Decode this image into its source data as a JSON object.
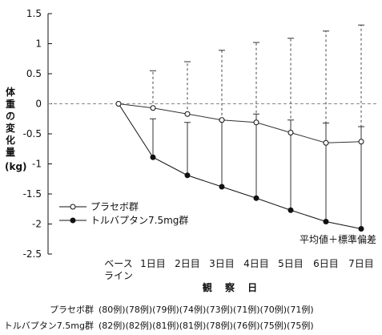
{
  "chart_data": {
    "type": "line",
    "ylabel": "体重の変化量",
    "yunit": "(kg)",
    "xlabel": "観 察 日",
    "ylim": [
      -2.5,
      1.5
    ],
    "yticks": [
      "1.5",
      "1",
      "0.5",
      "0",
      "-0.5",
      "-1",
      "-1.5",
      "-2",
      "-2.5"
    ],
    "ytick_values": [
      1.5,
      1,
      0.5,
      0,
      -0.5,
      -1,
      -1.5,
      -2,
      -2.5
    ],
    "categories": [
      "ベースライン",
      "1日目",
      "2日目",
      "3日目",
      "4日目",
      "5日目",
      "6日目",
      "7日目"
    ],
    "category_lines": [
      [
        "ベース",
        "ライン"
      ],
      [
        "1日目"
      ],
      [
        "2日目"
      ],
      [
        "3日目"
      ],
      [
        "4日目"
      ],
      [
        "5日目"
      ],
      [
        "6日目"
      ],
      [
        "7日目"
      ]
    ],
    "reference_line": 0,
    "error_bar_note": "平均値＋標準偏差",
    "legend_position": "bottom-left",
    "series": [
      {
        "name": "プラセボ群",
        "marker": "open-circle",
        "values": [
          0,
          -0.07,
          -0.17,
          -0.27,
          -0.31,
          -0.48,
          -0.65,
          -0.63
        ],
        "errors": [
          0,
          0.62,
          0.87,
          1.16,
          1.33,
          1.57,
          1.86,
          1.94
        ],
        "error_style": "dashed"
      },
      {
        "name": "トルバプタン7.5mg群",
        "marker": "filled-circle",
        "values": [
          0,
          -0.89,
          -1.19,
          -1.38,
          -1.57,
          -1.77,
          -1.96,
          -2.08
        ],
        "errors": [
          0,
          0.64,
          0.88,
          1.11,
          1.4,
          1.5,
          1.64,
          1.7
        ],
        "error_style": "solid"
      }
    ],
    "n_counts": [
      {
        "label": "プラセボ群",
        "values": "(80例)(78例)(79例)(74例)(73例)(71例)(70例)(71例)"
      },
      {
        "label": "トルバプタン7.5mg群",
        "values": "(82例)(82例)(81例)(81例)(78例)(76例)(75例)(75例)"
      }
    ]
  }
}
